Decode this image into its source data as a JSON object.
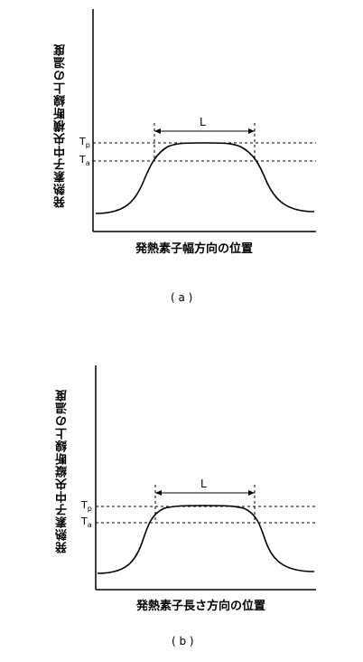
{
  "panels": [
    {
      "caption": "( a )",
      "ylabel": "発熱素子中央横断線上の温度",
      "xlabel": "発熱素子幅方向の位置",
      "length_label": "L",
      "tp_label": "T",
      "tp_sub": "p",
      "ta_label": "T",
      "ta_sub": "a"
    },
    {
      "caption": "( b )",
      "ylabel": "発熱素子中央縦断線上の温度",
      "xlabel": "発熱素子長さ方向の位置",
      "length_label": "L",
      "tp_label": "T",
      "tp_sub": "p",
      "ta_label": "T",
      "ta_sub": "a"
    }
  ]
}
